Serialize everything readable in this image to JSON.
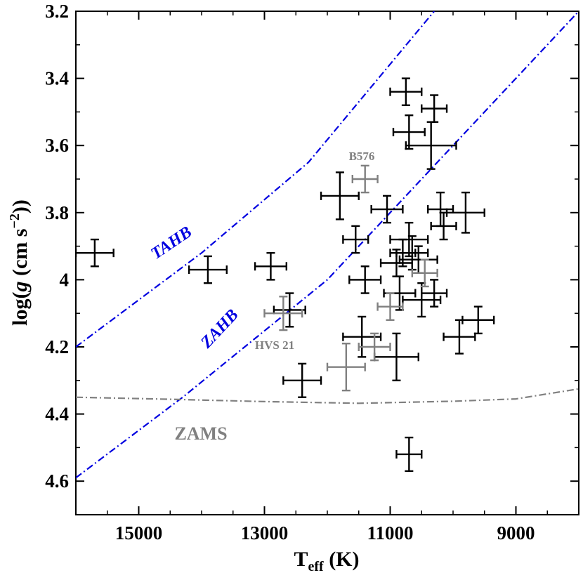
{
  "chart_data": {
    "type": "scatter",
    "xlabel": "T",
    "xlabel_sub": "eff",
    "xlabel_unit": " (K)",
    "ylabel_prefix": "log(",
    "ylabel_italic": "g",
    "ylabel_units": " (cm s",
    "ylabel_exp": "−2",
    "ylabel_suffix": "))",
    "xlim": [
      16000,
      8000
    ],
    "ylim": [
      4.7,
      3.2
    ],
    "x_ticks": [
      15000,
      13000,
      11000,
      9000
    ],
    "x_tick_labels": [
      "15000",
      "13000",
      "11000",
      "9000"
    ],
    "y_ticks": [
      3.2,
      3.4,
      3.6,
      3.8,
      4.0,
      4.2,
      4.4,
      4.6
    ],
    "y_tick_labels": [
      "3.2",
      "3.4",
      "3.6",
      "3.8",
      "4",
      "4.2",
      "4.4",
      "4.6"
    ],
    "colors": {
      "main": "#000000",
      "highlight": "#808080",
      "hb": "#0000e0",
      "zams": "#808080"
    },
    "curves": [
      {
        "label": "TAHB",
        "color": "#0000e0",
        "x": [
          16000,
          14000,
          12300,
          10300
        ],
        "y": [
          4.2,
          3.92,
          3.65,
          3.2
        ]
      },
      {
        "label": "ZAHB",
        "color": "#0000e0",
        "x": [
          16000,
          14300,
          12000,
          10000,
          8000
        ],
        "y": [
          4.59,
          4.35,
          4.0,
          3.6,
          3.2
        ]
      },
      {
        "label": "ZAMS",
        "color": "#808080",
        "x": [
          16000,
          14500,
          13000,
          11500,
          10000,
          9000,
          8000
        ],
        "y": [
          4.35,
          4.356,
          4.363,
          4.368,
          4.362,
          4.355,
          4.325
        ]
      }
    ],
    "annotations": [
      {
        "text": "TAHB",
        "color": "#0000e0"
      },
      {
        "text": "ZAHB",
        "color": "#0000e0"
      },
      {
        "text": "ZAMS",
        "color": "#808080"
      },
      {
        "text": "B576",
        "color": "#808080"
      },
      {
        "text": "HVS 21",
        "color": "#808080"
      }
    ],
    "series": [
      {
        "color": "#000000",
        "points": [
          {
            "x": 15700,
            "y": 3.92,
            "xerr": 300,
            "yerr": 0.04
          },
          {
            "x": 13900,
            "y": 3.97,
            "xerr": 300,
            "yerr": 0.04
          },
          {
            "x": 12900,
            "y": 3.96,
            "xerr": 250,
            "yerr": 0.04
          },
          {
            "x": 12600,
            "y": 4.09,
            "xerr": 250,
            "yerr": 0.05
          },
          {
            "x": 12400,
            "y": 4.3,
            "xerr": 300,
            "yerr": 0.05
          },
          {
            "x": 11800,
            "y": 3.75,
            "xerr": 300,
            "yerr": 0.07
          },
          {
            "x": 11550,
            "y": 3.88,
            "xerr": 200,
            "yerr": 0.04
          },
          {
            "x": 11450,
            "y": 4.17,
            "xerr": 300,
            "yerr": 0.06
          },
          {
            "x": 11400,
            "y": 4.0,
            "xerr": 250,
            "yerr": 0.04
          },
          {
            "x": 11050,
            "y": 3.79,
            "xerr": 250,
            "yerr": 0.04
          },
          {
            "x": 10900,
            "y": 4.23,
            "xerr": 350,
            "yerr": 0.07
          },
          {
            "x": 10900,
            "y": 3.95,
            "xerr": 250,
            "yerr": 0.04
          },
          {
            "x": 10850,
            "y": 4.04,
            "xerr": 250,
            "yerr": 0.05
          },
          {
            "x": 10800,
            "y": 3.92,
            "xerr": 200,
            "yerr": 0.04
          },
          {
            "x": 10750,
            "y": 3.44,
            "xerr": 250,
            "yerr": 0.04
          },
          {
            "x": 10700,
            "y": 3.56,
            "xerr": 250,
            "yerr": 0.05
          },
          {
            "x": 10700,
            "y": 3.88,
            "xerr": 300,
            "yerr": 0.05
          },
          {
            "x": 10650,
            "y": 3.92,
            "xerr": 250,
            "yerr": 0.05
          },
          {
            "x": 10550,
            "y": 3.94,
            "xerr": 300,
            "yerr": 0.04
          },
          {
            "x": 10500,
            "y": 4.06,
            "xerr": 300,
            "yerr": 0.05
          },
          {
            "x": 10350,
            "y": 3.6,
            "xerr": 400,
            "yerr": 0.07
          },
          {
            "x": 10300,
            "y": 3.49,
            "xerr": 200,
            "yerr": 0.04
          },
          {
            "x": 10300,
            "y": 4.04,
            "xerr": 200,
            "yerr": 0.04
          },
          {
            "x": 10200,
            "y": 3.79,
            "xerr": 200,
            "yerr": 0.05
          },
          {
            "x": 10150,
            "y": 3.84,
            "xerr": 200,
            "yerr": 0.04
          },
          {
            "x": 9800,
            "y": 3.8,
            "xerr": 300,
            "yerr": 0.06
          },
          {
            "x": 9900,
            "y": 4.17,
            "xerr": 250,
            "yerr": 0.05
          },
          {
            "x": 9600,
            "y": 4.12,
            "xerr": 250,
            "yerr": 0.04
          },
          {
            "x": 10700,
            "y": 4.52,
            "xerr": 200,
            "yerr": 0.05
          }
        ]
      },
      {
        "color": "#808080",
        "points": [
          {
            "x": 11400,
            "y": 3.7,
            "xerr": 200,
            "yerr": 0.04
          },
          {
            "x": 12700,
            "y": 4.1,
            "xerr": 300,
            "yerr": 0.05
          },
          {
            "x": 11700,
            "y": 4.26,
            "xerr": 300,
            "yerr": 0.07
          },
          {
            "x": 11250,
            "y": 4.2,
            "xerr": 250,
            "yerr": 0.04
          },
          {
            "x": 11000,
            "y": 4.08,
            "xerr": 200,
            "yerr": 0.04
          },
          {
            "x": 10450,
            "y": 3.98,
            "xerr": 200,
            "yerr": 0.04
          }
        ]
      }
    ]
  }
}
